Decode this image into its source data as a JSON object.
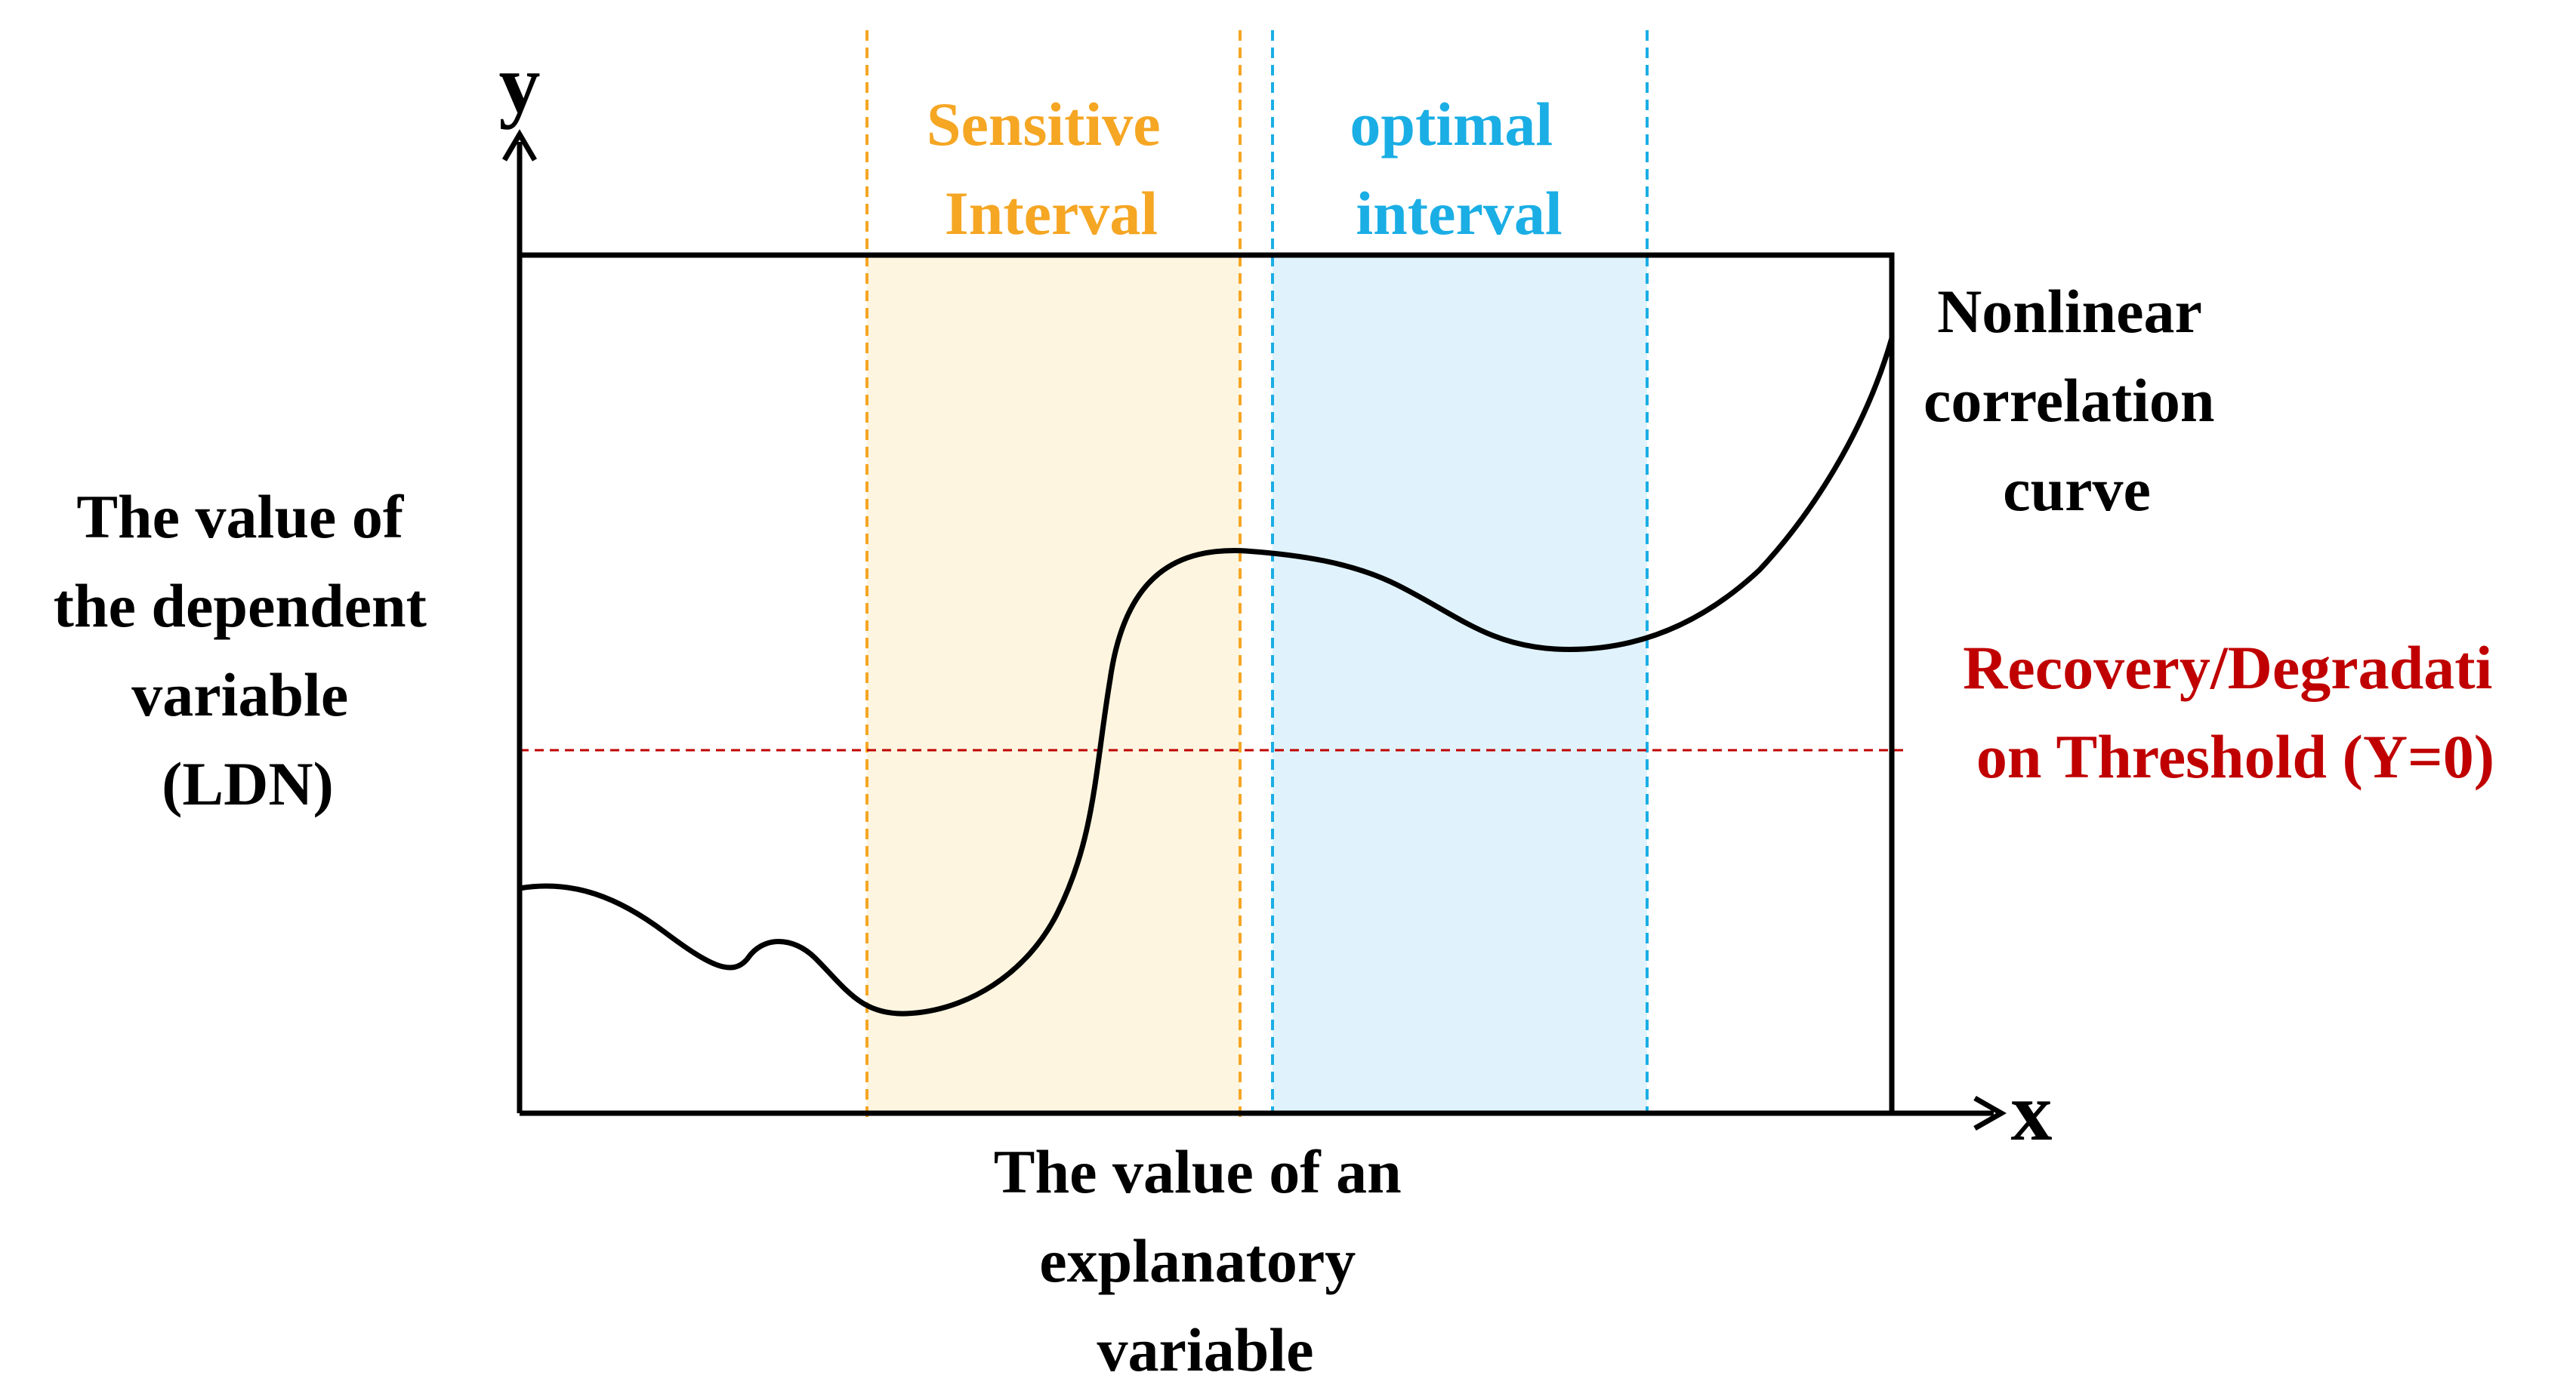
{
  "axes": {
    "y_symbol": "y",
    "x_symbol": "x",
    "y_label": [
      "The value of",
      "the dependent",
      "variable",
      "(LDN)"
    ],
    "x_label": [
      "The value of an",
      "explanatory",
      "variable"
    ]
  },
  "sensitive_interval": {
    "label": [
      "Sensitive",
      "Interval"
    ],
    "color": "#f5a623",
    "fill": "#fdf5e0"
  },
  "optimal_interval": {
    "label": [
      "optimal",
      "interval"
    ],
    "color": "#1aaee5",
    "fill": "#e0f3fc"
  },
  "curve": {
    "label": [
      "Nonlinear",
      "correlation",
      "curve"
    ],
    "color": "#000000"
  },
  "threshold": {
    "label": [
      "Recovery/Degradati",
      "on Threshold (Y=0)"
    ],
    "color": "#c00000"
  }
}
